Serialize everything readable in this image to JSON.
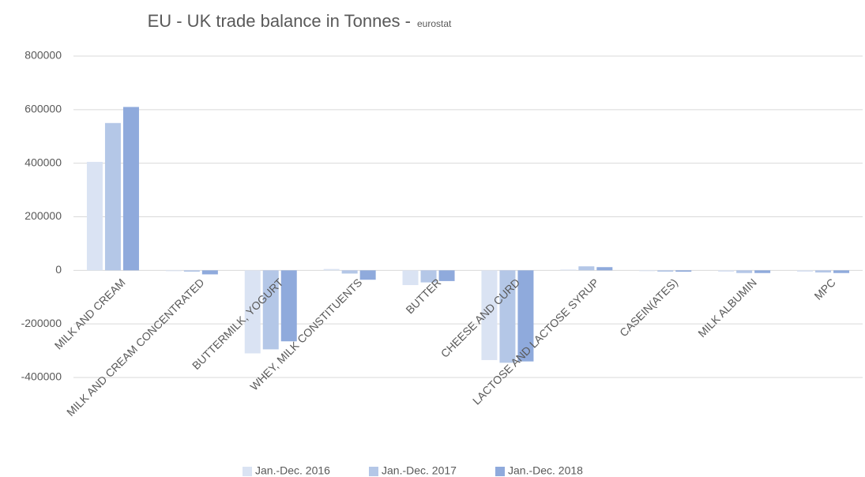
{
  "chart_data": {
    "type": "bar",
    "title": "EU - UK trade balance in Tonnes -",
    "subtitle": "eurostat",
    "categories": [
      "MILK AND CREAM",
      "MILK AND CREAM CONCENTRATED",
      "BUTTERMILK,  YOGURT",
      "WHEY,  MILK CONSTITUENTS",
      "BUTTER",
      "CHEESE AND CURD",
      "LACTOSE AND LACTOSE SYRUP",
      "CASEIN(ATES)",
      "MILK ALBUMIN",
      "MPC"
    ],
    "series": [
      {
        "name": "Jan.-Dec. 2016",
        "color": "#dae3f3",
        "values": [
          405000,
          -3000,
          -310000,
          5000,
          -55000,
          -335000,
          3000,
          -3000,
          -5000,
          -5000
        ]
      },
      {
        "name": "Jan.-Dec. 2017",
        "color": "#b4c7e7",
        "values": [
          550000,
          -5000,
          -295000,
          -12000,
          -45000,
          -345000,
          15000,
          -5000,
          -10000,
          -8000
        ]
      },
      {
        "name": "Jan.-Dec. 2018",
        "color": "#8faadc",
        "values": [
          610000,
          -15000,
          -265000,
          -35000,
          -40000,
          -340000,
          12000,
          -5000,
          -10000,
          -10000
        ]
      }
    ],
    "ylim": [
      -400000,
      800000
    ],
    "yticks": [
      -400000,
      -200000,
      0,
      200000,
      400000,
      600000,
      800000
    ],
    "grid": true,
    "legend": "bottom"
  }
}
